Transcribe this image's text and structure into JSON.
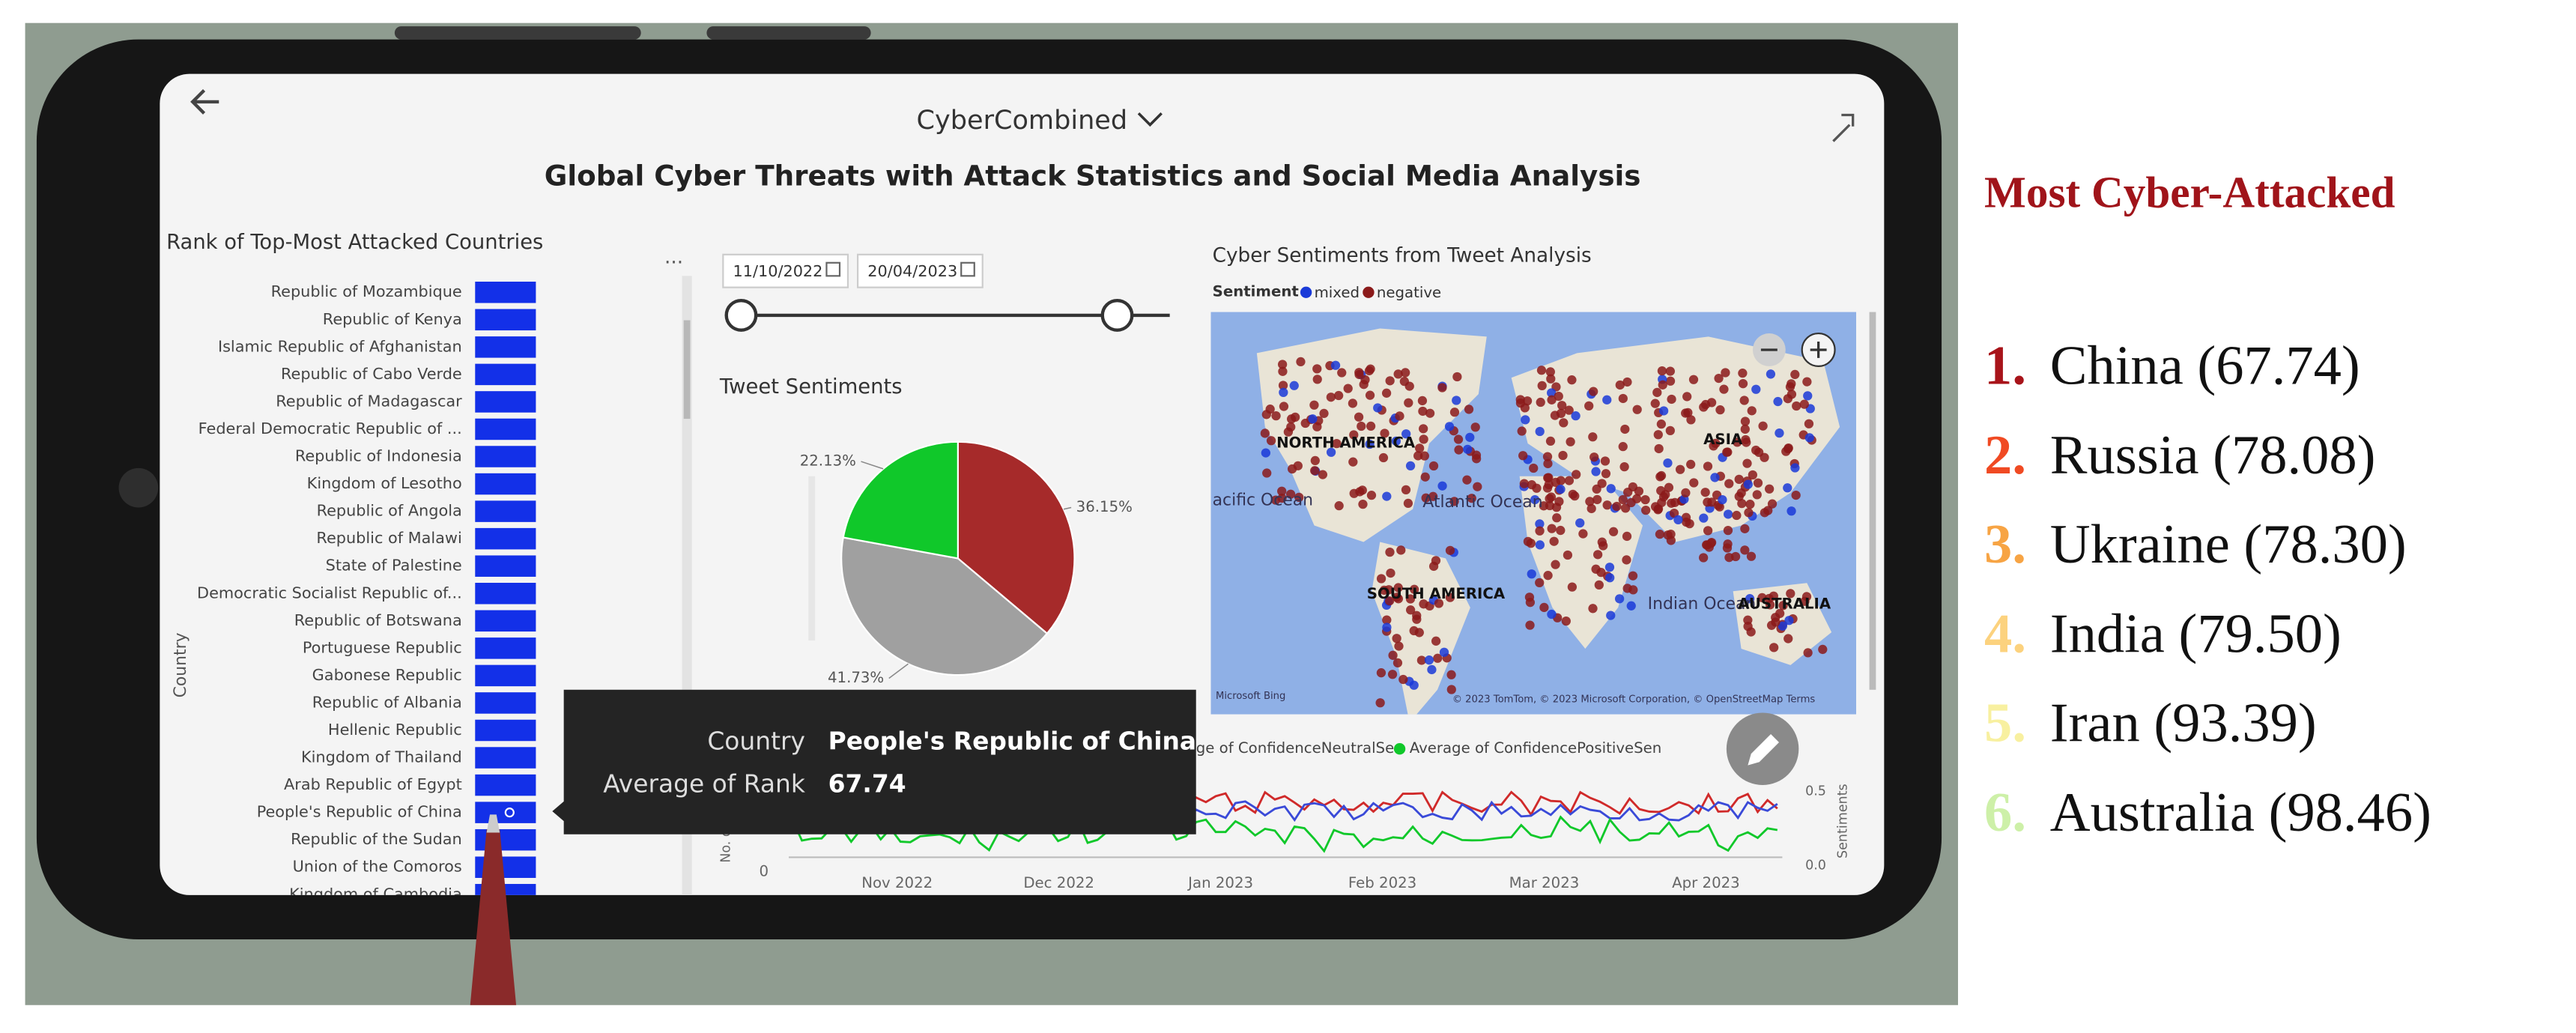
{
  "dashboard": {
    "report_name": "CyberCombined",
    "title": "Global Cyber Threats with Attack Statistics and Social Media Analysis",
    "rank_chart": {
      "title": "Rank of Top-Most Attacked Countries",
      "axis_label": "Country",
      "more": "...",
      "categories": [
        "Republic of Mozambique",
        "Republic of Kenya",
        "Islamic Republic of Afghanistan",
        "Republic of Cabo Verde",
        "Republic of Madagascar",
        "Federal Democratic Republic of ...",
        "Republic of Indonesia",
        "Kingdom of Lesotho",
        "Republic of Angola",
        "Republic of Malawi",
        "State of Palestine",
        "Democratic Socialist Republic of...",
        "Republic of Botswana",
        "Portuguese Republic",
        "Gabonese Republic",
        "Republic of Albania",
        "Hellenic Republic",
        "Kingdom of Thailand",
        "Arab Republic of Egypt",
        "People's Republic of China",
        "Republic of the Sudan",
        "Union of the Comoros",
        "Kingdom of Cambodia"
      ],
      "bar_color": "#1330e8"
    },
    "date_filter": {
      "start": "11/10/2022",
      "end": "20/04/2023"
    },
    "pie": {
      "type": "pie",
      "title": "Tweet Sentiments",
      "values": [
        36.15,
        41.73,
        22.13
      ],
      "value_labels": [
        "36.15%",
        "41.73%",
        "22.13%"
      ],
      "colors": [
        "#a62a2a",
        "#a0a0a0",
        "#10c82a"
      ]
    },
    "map": {
      "title": "Cyber Sentiments from Tweet Analysis",
      "legend_title": "Sentiment",
      "legend": [
        {
          "name": "mixed",
          "color": "#1a3ad8"
        },
        {
          "name": "negative",
          "color": "#8b1a1a"
        }
      ],
      "labels": [
        "NORTH AMERICA",
        "ASIA",
        "Atlantic Ocean",
        "acific Ocean",
        "SOUTH AMERICA",
        "Indian Ocean",
        "AUSTRALIA"
      ],
      "attribution": "© 2023 TomTom, © 2023 Microsoft Corporation, © OpenStreetMap Terms",
      "brand": "Microsoft Bing"
    },
    "tooltip": {
      "rows": [
        {
          "field": "Country",
          "value": "People's Republic of China"
        },
        {
          "field": "Average of Rank",
          "value": "67.74"
        }
      ]
    },
    "line_chart": {
      "legend": [
        "ge of ConfidenceNeutralSen",
        "Average of ConfidencePositiveSen"
      ],
      "x_labels": [
        "Nov 2022",
        "Dec 2022",
        "Jan 2023",
        "Feb 2023",
        "Mar 2023",
        "Apr 2023"
      ],
      "y_label": "No. o",
      "y_tick": "0",
      "y2_label": "Sentiments",
      "y2_ticks": [
        "0.5",
        "0.0"
      ]
    }
  },
  "ranking": {
    "title": "Most Cyber-Attacked",
    "items": [
      {
        "rank": "1.",
        "name": "China (67.74)",
        "color": "#a8141a"
      },
      {
        "rank": "2.",
        "name": "Russia (78.08)",
        "color": "#f04a23"
      },
      {
        "rank": "3.",
        "name": "Ukraine (78.30)",
        "color": "#f7a444"
      },
      {
        "rank": "4.",
        "name": "India (79.50)",
        "color": "#fcd27e"
      },
      {
        "rank": "5.",
        "name": "Iran (93.39)",
        "color": "#f8f0a0"
      },
      {
        "rank": "6.",
        "name": "Australia (98.46)",
        "color": "#cdf0a8"
      }
    ]
  }
}
